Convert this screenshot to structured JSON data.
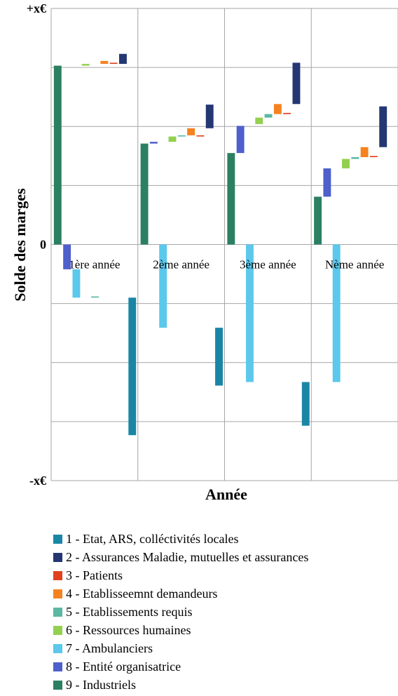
{
  "chart_data": {
    "type": "bar",
    "subtype": "waterfall",
    "ylabel": "Solde des marges",
    "xlabel": "Année",
    "y_ticks": [
      {
        "value": 4,
        "label": "+x€"
      },
      {
        "value": 0,
        "label": "0"
      },
      {
        "value": -4,
        "label": "-x€"
      }
    ],
    "ylim": [
      -4,
      4
    ],
    "grid": true,
    "legend_position": "bottom",
    "categories": [
      "1ère année",
      "2ème année",
      "3ème année",
      "Nème année"
    ],
    "series": [
      {
        "name": "1 - Etat, ARS, colléctivités locales",
        "color": "#1a86a6",
        "ranges": [
          [
            -0.9,
            -3.23
          ],
          [
            -1.41,
            -2.39
          ],
          [
            -2.33,
            -3.07
          ],
          null
        ]
      },
      {
        "name": "2 - Assurances Maladie, mutuelles et assurances",
        "color": "#243773",
        "ranges": [
          [
            3.06,
            3.23
          ],
          [
            1.97,
            2.37
          ],
          [
            2.38,
            3.08
          ],
          [
            1.65,
            2.34
          ]
        ]
      },
      {
        "name": "3 - Patients",
        "color": "#e0421f",
        "ranges": [
          [
            3.06,
            3.08
          ],
          [
            1.83,
            1.85
          ],
          [
            2.21,
            2.23
          ],
          [
            1.48,
            1.5
          ]
        ]
      },
      {
        "name": "4 - Etablisseemnt demandeurs",
        "color": "#f5821f",
        "ranges": [
          [
            3.06,
            3.11
          ],
          [
            1.85,
            1.97
          ],
          [
            2.21,
            2.38
          ],
          [
            1.48,
            1.65
          ]
        ]
      },
      {
        "name": "5 - Etablissements requis",
        "color": "#5ab8a4",
        "ranges": [
          [
            -0.9,
            -0.88
          ],
          [
            1.83,
            1.85
          ],
          [
            2.15,
            2.21
          ],
          [
            1.45,
            1.48
          ]
        ]
      },
      {
        "name": "6 - Ressources humaines",
        "color": "#94d050",
        "ranges": [
          [
            3.03,
            3.06
          ],
          [
            1.74,
            1.83
          ],
          [
            2.04,
            2.15
          ],
          [
            1.29,
            1.45
          ]
        ]
      },
      {
        "name": "7 - Ambulanciers",
        "color": "#5bc8ec",
        "ranges": [
          [
            -0.42,
            -0.9
          ],
          [
            0,
            -1.41
          ],
          [
            0,
            -2.33
          ],
          [
            0,
            -2.33
          ]
        ]
      },
      {
        "name": "8 - Entité organisatrice",
        "color": "#4f5fcb",
        "ranges": [
          [
            0,
            -0.42
          ],
          [
            1.71,
            1.74
          ],
          [
            1.55,
            2.01
          ],
          [
            0.81,
            1.29
          ]
        ]
      },
      {
        "name": "9 - Industriels",
        "color": "#2c8062",
        "ranges": [
          [
            0,
            3.03
          ],
          [
            0,
            1.71
          ],
          [
            0,
            1.55
          ],
          [
            0,
            0.81
          ]
        ]
      }
    ]
  }
}
